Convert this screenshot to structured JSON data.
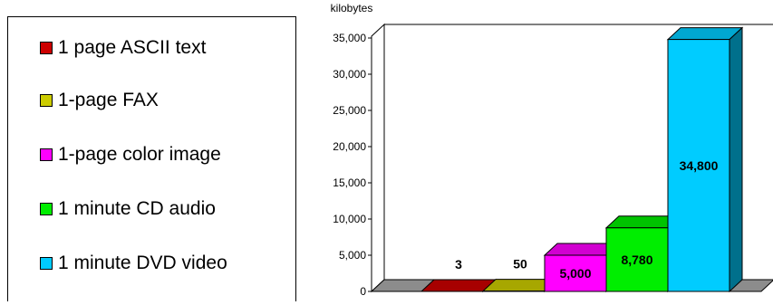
{
  "chart_data": {
    "type": "bar",
    "ylabel": "kilobytes",
    "ylim": [
      0,
      35000
    ],
    "yticks": [
      "0",
      "5,000",
      "10,000",
      "15,000",
      "20,000",
      "25,000",
      "30,000",
      "35,000"
    ],
    "categories": [
      "1 page ASCII text",
      "1-page FAX",
      "1-page color image",
      "1 minute CD audio",
      "1 minute DVD video"
    ],
    "values": [
      3,
      50,
      5000,
      8780,
      34800
    ],
    "data_labels": [
      "3",
      "50",
      "5,000",
      "8,780",
      "34,800"
    ],
    "colors": [
      "#cc0000",
      "#cccc00",
      "#ff00ff",
      "#00ee00",
      "#00ccff"
    ],
    "legend_position": "left",
    "style": "3d",
    "grid": false
  }
}
